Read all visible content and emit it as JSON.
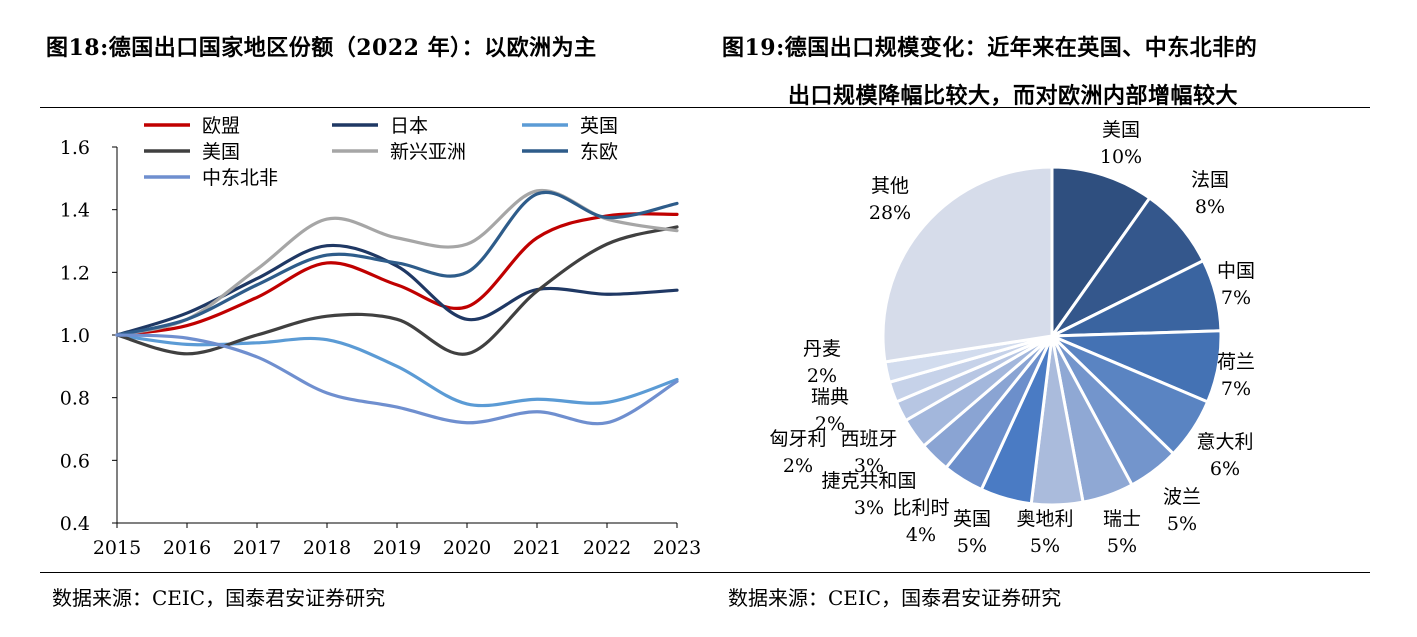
{
  "page": {
    "title_left": "图18:德国出口国家地区份额（2022 年）：以欧洲为主",
    "title_right_line1": "图19:德国出口规模变化：近年来在英国、中东北非的",
    "title_right_line2": "出口规模降幅比较大，而对欧洲内部增幅较大",
    "source_left": "数据来源：CEIC，国泰君安证券研究",
    "source_right": "数据来源：CEIC，国泰君安证券研究"
  },
  "chart_data": [
    {
      "type": "line",
      "title": "",
      "xlabel": "",
      "ylabel": "",
      "x": [
        2015,
        2016,
        2017,
        2018,
        2019,
        2020,
        2021,
        2022,
        2023
      ],
      "x_labels": [
        "2015",
        "2016",
        "2017",
        "2018",
        "2019",
        "2020",
        "2021",
        "2022",
        "2023"
      ],
      "ylim": [
        0.4,
        1.6
      ],
      "y_ticks": [
        0.4,
        0.6,
        0.8,
        1.0,
        1.2,
        1.4,
        1.6
      ],
      "y_tick_labels": [
        "0.4",
        "0.6",
        "0.8",
        "1.0",
        "1.2",
        "1.4",
        "1.6"
      ],
      "grid": false,
      "legend_position": "top-left",
      "series": [
        {
          "name": "欧盟",
          "color": "#c00000",
          "values": [
            1.0,
            1.03,
            1.12,
            1.23,
            1.16,
            1.09,
            1.31,
            1.38,
            1.385
          ]
        },
        {
          "name": "日本",
          "color": "#1f3864",
          "values": [
            1.0,
            1.07,
            1.18,
            1.285,
            1.22,
            1.05,
            1.145,
            1.13,
            1.143
          ]
        },
        {
          "name": "英国",
          "color": "#5b9bd5",
          "values": [
            1.0,
            0.97,
            0.975,
            0.985,
            0.9,
            0.78,
            0.795,
            0.785,
            0.858
          ]
        },
        {
          "name": "美国",
          "color": "#404040",
          "values": [
            1.0,
            0.94,
            1.0,
            1.06,
            1.05,
            0.94,
            1.14,
            1.29,
            1.345
          ]
        },
        {
          "name": "新兴亚洲",
          "color": "#a6a6a6",
          "values": [
            1.0,
            1.05,
            1.21,
            1.37,
            1.31,
            1.29,
            1.46,
            1.37,
            1.333
          ]
        },
        {
          "name": "东欧",
          "color": "#2e5c8a",
          "values": [
            1.0,
            1.05,
            1.16,
            1.255,
            1.23,
            1.2,
            1.45,
            1.375,
            1.42
          ]
        },
        {
          "name": "中东北非",
          "color": "#6f8fcf",
          "values": [
            1.0,
            0.99,
            0.93,
            0.815,
            0.77,
            0.72,
            0.755,
            0.72,
            0.852
          ]
        }
      ]
    },
    {
      "type": "pie",
      "title": "",
      "start_angle_deg": 0,
      "direction": "clockwise",
      "slices": [
        {
          "label": "美国",
          "value": 10,
          "value_label": "10%",
          "color": "#2f4f7f"
        },
        {
          "label": "法国",
          "value": 8,
          "value_label": "8%",
          "color": "#34578c"
        },
        {
          "label": "中国",
          "value": 7,
          "value_label": "7%",
          "color": "#3a64a0"
        },
        {
          "label": "荷兰",
          "value": 7,
          "value_label": "7%",
          "color": "#4472b4"
        },
        {
          "label": "意大利",
          "value": 6,
          "value_label": "6%",
          "color": "#5a84c2"
        },
        {
          "label": "波兰",
          "value": 5,
          "value_label": "5%",
          "color": "#7395cc"
        },
        {
          "label": "瑞士",
          "value": 5,
          "value_label": "5%",
          "color": "#8fa8d4"
        },
        {
          "label": "奥地利",
          "value": 5,
          "value_label": "5%",
          "color": "#aabbdc"
        },
        {
          "label": "英国",
          "value": 5,
          "value_label": "5%",
          "color": "#4a7bc4"
        },
        {
          "label": "比利时",
          "value": 4,
          "value_label": "4%",
          "color": "#6c8fcb"
        },
        {
          "label": "捷克共和国",
          "value": 3,
          "value_label": "3%",
          "color": "#8aa4d3"
        },
        {
          "label": "西班牙",
          "value": 3,
          "value_label": "3%",
          "color": "#a3b7dc"
        },
        {
          "label": "匈牙利",
          "value": 2,
          "value_label": "2%",
          "color": "#b7c6e3"
        },
        {
          "label": "瑞典",
          "value": 2,
          "value_label": "2%",
          "color": "#c6d2e9"
        },
        {
          "label": "丹麦",
          "value": 2,
          "value_label": "2%",
          "color": "#d2dcee"
        },
        {
          "label": "其他",
          "value": 28,
          "value_label": "28%",
          "color": "#d6dcea"
        }
      ]
    }
  ]
}
